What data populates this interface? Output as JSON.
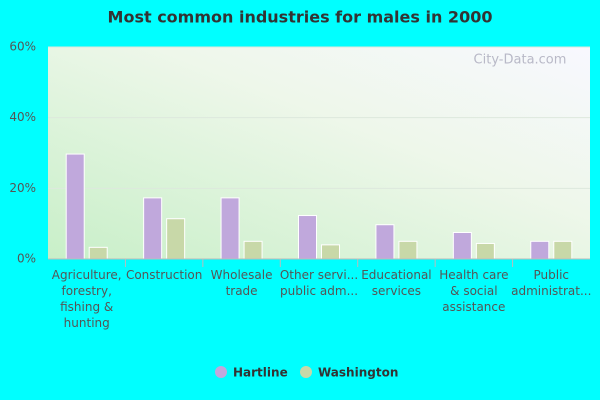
{
  "chart_data": {
    "type": "bar",
    "title": "Most common industries for males in 2000",
    "watermark": "City-Data.com",
    "categories": [
      "Agriculture,\nforestry,\nfishing &\nhunting",
      "Construction",
      "Wholesale\ntrade",
      "Other servi...\npublic adm...",
      "Educational\nservices",
      "Health care\n& social\nassistance",
      "Public\nadministrat..."
    ],
    "series": [
      {
        "name": "Hartline",
        "color": "#c0a8dc",
        "values": [
          29.7,
          17.3,
          17.3,
          12.3,
          9.7,
          7.5,
          5.0
        ]
      },
      {
        "name": "Washington",
        "color": "#c8d8a8",
        "values": [
          3.3,
          11.4,
          5.0,
          4.0,
          5.0,
          4.4,
          5.0
        ]
      }
    ],
    "ylim": [
      0,
      60
    ],
    "yticks": [
      {
        "value": 0,
        "label": "0%"
      },
      {
        "value": 20,
        "label": "20%"
      },
      {
        "value": 40,
        "label": "40%"
      },
      {
        "value": 60,
        "label": "60%"
      }
    ],
    "grid": true
  }
}
